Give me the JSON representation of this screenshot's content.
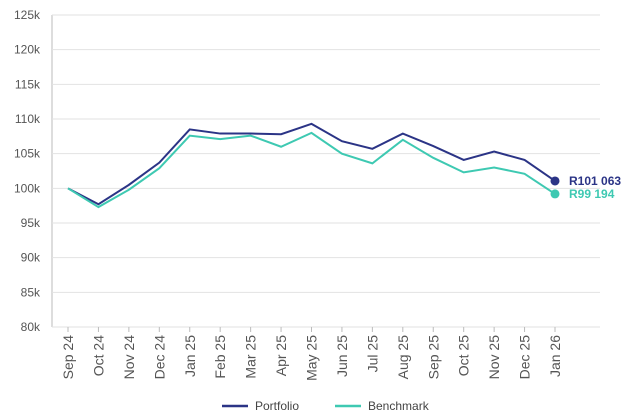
{
  "chart_data": {
    "type": "line",
    "categories": [
      "Sep 24",
      "Oct 24",
      "Nov 24",
      "Dec 24",
      "Jan 25",
      "Feb 25",
      "Mar 25",
      "Apr 25",
      "May 25",
      "Jun 25",
      "Jul 25",
      "Aug 25",
      "Sep 25",
      "Oct 25",
      "Nov 25",
      "Dec 25",
      "Jan 26"
    ],
    "series": [
      {
        "name": "Portfolio",
        "color": "#2b3486",
        "values": [
          100000,
          97700,
          100500,
          103700,
          108500,
          107900,
          107900,
          107800,
          109300,
          106800,
          105700,
          107900,
          106100,
          104100,
          105300,
          104100,
          101063
        ],
        "value_labels": [
          null,
          null,
          null,
          null,
          null,
          null,
          null,
          null,
          null,
          null,
          null,
          null,
          null,
          null,
          null,
          null,
          "R101 063"
        ]
      },
      {
        "name": "Benchmark",
        "color": "#3ec9b2",
        "values": [
          100000,
          97300,
          99800,
          102900,
          107600,
          107100,
          107600,
          106000,
          108000,
          105000,
          103600,
          107000,
          104400,
          102300,
          103000,
          102100,
          99194
        ],
        "value_labels": [
          null,
          null,
          null,
          null,
          null,
          null,
          null,
          null,
          null,
          null,
          null,
          null,
          null,
          null,
          null,
          null,
          "R99 194"
        ]
      }
    ],
    "ylim": [
      80000,
      125000
    ],
    "yticks": [
      {
        "value": 80000,
        "label": "80k"
      },
      {
        "value": 85000,
        "label": "85k"
      },
      {
        "value": 90000,
        "label": "90k"
      },
      {
        "value": 95000,
        "label": "95k"
      },
      {
        "value": 100000,
        "label": "100k"
      },
      {
        "value": 105000,
        "label": "105k"
      },
      {
        "value": 110000,
        "label": "110k"
      },
      {
        "value": 115000,
        "label": "115k"
      },
      {
        "value": 120000,
        "label": "120k"
      },
      {
        "value": 125000,
        "label": "125k"
      }
    ],
    "grid": true,
    "legend": "bottom"
  }
}
